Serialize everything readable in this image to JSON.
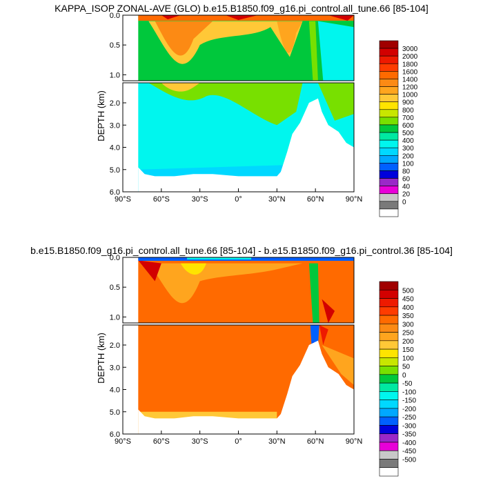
{
  "panels": [
    {
      "title": "KAPPA_ISOP ZONAL-AVE (GLO) b.e15.B1850.f09_g16.pi_control.all_tune.66 [85-104]",
      "ylabel": "DEPTH (km)",
      "upper_ticks": [
        "0.0",
        "0.5",
        "1.0"
      ],
      "lower_ticks": [
        "2.0",
        "3.0",
        "4.0",
        "5.0",
        "6.0"
      ],
      "xticks": [
        "90°S",
        "60°S",
        "30°S",
        "0°",
        "30°N",
        "60°N",
        "90°N"
      ],
      "colorbar_labels": [
        "3000",
        "2000",
        "1800",
        "1600",
        "1400",
        "1200",
        "1000",
        "900",
        "800",
        "700",
        "600",
        "500",
        "400",
        "300",
        "200",
        "100",
        "80",
        "60",
        "40",
        "20",
        "0"
      ],
      "colorbar_colors": [
        "#a00000",
        "#d20000",
        "#ee1a00",
        "#fe3c00",
        "#ff6a00",
        "#fc8a14",
        "#ffa51e",
        "#ffc837",
        "#ffe400",
        "#c8e600",
        "#78e000",
        "#00c83c",
        "#00e9a2",
        "#00f6ee",
        "#00d8ff",
        "#00a8ff",
        "#0060ff",
        "#0000dc",
        "#9a28c8",
        "#e800d8",
        "#c8c8c8",
        "#7a7a7a",
        "#ffffff"
      ]
    },
    {
      "title": "b.e15.B1850.f09_g16.pi_control.all_tune.66 [85-104] - b.e15.B1850.f09_g16.pi_control.36 [85-104]",
      "ylabel": "DEPTH (km)",
      "upper_ticks": [
        "0.0",
        "0.5",
        "1.0"
      ],
      "lower_ticks": [
        "2.0",
        "3.0",
        "4.0",
        "5.0",
        "6.0"
      ],
      "xticks": [
        "90°S",
        "60°S",
        "30°S",
        "0°",
        "30°N",
        "60°N",
        "90°N"
      ],
      "colorbar_labels": [
        "500",
        "450",
        "400",
        "350",
        "300",
        "250",
        "200",
        "150",
        "100",
        "50",
        "0",
        "-50",
        "-100",
        "-150",
        "-200",
        "-250",
        "-300",
        "-350",
        "-400",
        "-450",
        "-500"
      ],
      "colorbar_colors": [
        "#a00000",
        "#d20000",
        "#ee1a00",
        "#fe3c00",
        "#ff6a00",
        "#fc8a14",
        "#ffa51e",
        "#ffc837",
        "#ffe400",
        "#c8e600",
        "#78e000",
        "#00c83c",
        "#00e9a2",
        "#00f6ee",
        "#00d8ff",
        "#00a8ff",
        "#0060ff",
        "#0000dc",
        "#9a28c8",
        "#e800d8",
        "#c8c8c8",
        "#7a7a7a",
        "#ffffff"
      ]
    }
  ],
  "chart_data": [
    {
      "type": "heatmap",
      "title": "KAPPA_ISOP ZONAL-AVE (GLO) b.e15.B1850.f09_g16.pi_control.all_tune.66 [85-104]",
      "xlabel": "",
      "ylabel": "DEPTH (km)",
      "xlim": [
        -90,
        90
      ],
      "ylim_upper": [
        0.0,
        1.1
      ],
      "ylim_lower": [
        1.1,
        6.0
      ],
      "x_ticks": [
        "90°S",
        "60°S",
        "30°S",
        "0°",
        "30°N",
        "60°N",
        "90°N"
      ],
      "contour_levels": [
        0,
        20,
        40,
        60,
        80,
        100,
        200,
        300,
        400,
        500,
        600,
        700,
        800,
        900,
        1000,
        1200,
        1400,
        1600,
        1800,
        2000,
        3000
      ],
      "grid": false,
      "legend": "right colorbar"
    },
    {
      "type": "heatmap",
      "title": "b.e15.B1850.f09_g16.pi_control.all_tune.66 [85-104] - b.e15.B1850.f09_g16.pi_control.36 [85-104]",
      "xlabel": "",
      "ylabel": "DEPTH (km)",
      "xlim": [
        -90,
        90
      ],
      "ylim_upper": [
        0.0,
        1.1
      ],
      "ylim_lower": [
        1.1,
        6.0
      ],
      "x_ticks": [
        "90°S",
        "60°S",
        "30°S",
        "0°",
        "30°N",
        "60°N",
        "90°N"
      ],
      "contour_levels": [
        -500,
        -450,
        -400,
        -350,
        -300,
        -250,
        -200,
        -150,
        -100,
        -50,
        0,
        50,
        100,
        150,
        200,
        250,
        300,
        350,
        400,
        450,
        500
      ],
      "grid": false,
      "legend": "right colorbar"
    }
  ]
}
